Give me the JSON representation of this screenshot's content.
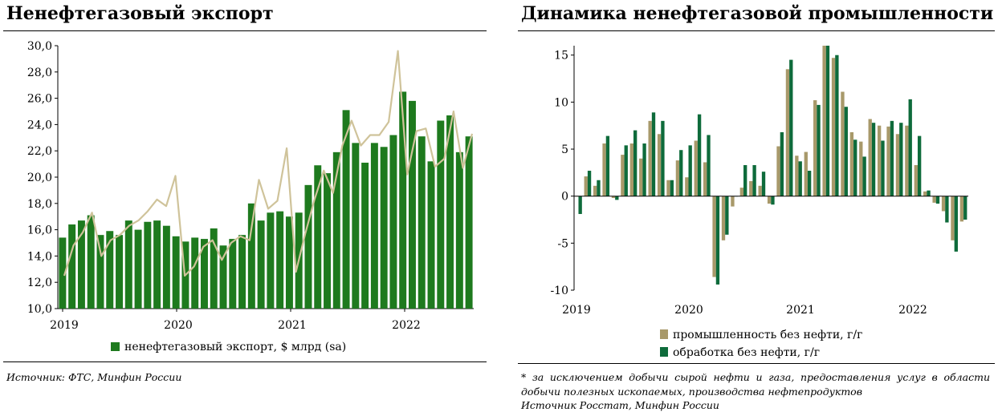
{
  "left": {
    "title": "Ненефтегазовый экспорт",
    "source": "Источник: ФТС, Минфин России",
    "chart_data": {
      "type": "bar",
      "title": "Ненефтегазовый экспорт",
      "ylim": [
        10,
        30
      ],
      "y_ticks": [
        "10,0",
        "12,0",
        "14,0",
        "16,0",
        "18,0",
        "20,0",
        "22,0",
        "24,0",
        "26,0",
        "28,0",
        "30,0"
      ],
      "x_ticks": [
        "2019",
        "2020",
        "2021",
        "2022"
      ],
      "legend": [
        "ненефтегазовый экспорт, $ млрд (sa)"
      ],
      "colors": {
        "bars": "#1e7a1e",
        "line": "#cfc39a",
        "text": "#000000"
      },
      "series": [
        {
          "name": "ненефтегазовый экспорт, $ млрд (sa)",
          "kind": "bar",
          "values": [
            15.4,
            16.4,
            16.7,
            17.1,
            15.6,
            15.9,
            15.6,
            16.7,
            16.0,
            16.6,
            16.7,
            16.3,
            15.5,
            15.1,
            15.4,
            15.3,
            16.1,
            14.8,
            15.3,
            15.6,
            18.0,
            16.7,
            17.3,
            17.4,
            17.0,
            17.3,
            19.4,
            20.9,
            20.3,
            21.9,
            25.1,
            22.6,
            21.1,
            22.6,
            22.3,
            23.2,
            26.5,
            25.8,
            23.1,
            21.2,
            24.3,
            24.7,
            21.9,
            23.1
          ]
        },
        {
          "name": "",
          "kind": "line",
          "values": [
            12.5,
            14.8,
            15.8,
            17.3,
            14.0,
            15.2,
            15.6,
            16.3,
            16.7,
            17.4,
            18.3,
            17.8,
            20.1,
            12.5,
            13.2,
            14.7,
            15.2,
            13.7,
            15.0,
            15.5,
            15.2,
            19.8,
            17.6,
            18.2,
            22.2,
            12.8,
            15.7,
            18.3,
            20.5,
            18.8,
            22.4,
            24.3,
            22.4,
            23.2,
            23.2,
            24.2,
            29.6,
            20.2,
            23.5,
            23.7,
            20.8,
            21.4,
            25.0,
            20.7,
            23.3
          ]
        }
      ]
    }
  },
  "right": {
    "title": "Динамика ненефтегазовой промышленности",
    "footnote": "* за исключением добычи сырой нефти и газа, предоставления услуг в области добычи полезных ископаемых, производства нефтепродуктов",
    "source": "Источник Росстат, Минфин России",
    "chart_data": {
      "type": "bar",
      "title": "Динамика ненефтегазовой промышленности",
      "ylim": [
        -10,
        16
      ],
      "y_ticks": [
        "-10",
        "-5",
        "0",
        "5",
        "10",
        "15"
      ],
      "x_ticks": [
        "2019",
        "2020",
        "2021",
        "2022"
      ],
      "legend": [
        "промышленность без нефти, г/г",
        "обработка без нефти, г/г"
      ],
      "colors": {
        "industry": "#a8996a",
        "manufacturing": "#0e6b3b",
        "text": "#000000"
      },
      "series": [
        {
          "name": "промышленность без нефти, г/г",
          "values": [
            0.0,
            2.1,
            1.1,
            5.6,
            -0.2,
            4.4,
            5.6,
            4.0,
            8.0,
            6.6,
            1.7,
            3.8,
            2.0,
            5.9,
            3.6,
            -8.6,
            -4.7,
            -1.1,
            0.9,
            1.6,
            1.1,
            -0.8,
            5.3,
            13.5,
            4.3,
            4.7,
            10.2,
            16.0,
            14.7,
            11.1,
            6.8,
            5.8,
            8.2,
            7.5,
            7.4,
            6.6,
            7.5,
            3.3,
            0.5,
            -0.7,
            -1.6,
            -4.7,
            -2.7
          ]
        },
        {
          "name": "обработка без нефти, г/г",
          "values": [
            -1.9,
            2.7,
            1.7,
            6.4,
            -0.4,
            5.4,
            7.0,
            5.6,
            8.9,
            8.0,
            1.7,
            4.9,
            5.4,
            8.7,
            6.5,
            -9.4,
            -4.1,
            0.0,
            3.3,
            3.3,
            2.6,
            -0.9,
            6.8,
            14.5,
            3.7,
            2.7,
            9.7,
            16.0,
            15.0,
            9.5,
            6.0,
            4.2,
            7.8,
            5.9,
            8.0,
            7.8,
            10.3,
            6.4,
            0.6,
            -0.8,
            -2.8,
            -5.9,
            -2.5
          ]
        }
      ]
    }
  }
}
